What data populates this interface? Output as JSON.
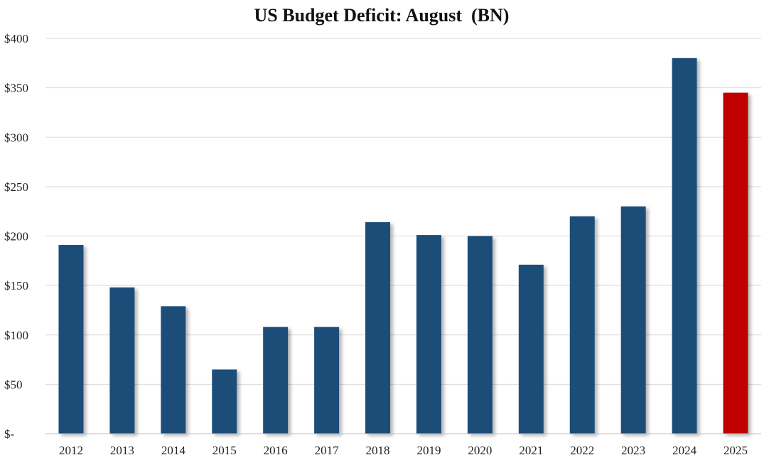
{
  "chart_data": {
    "type": "bar",
    "title": "US Budget Deficit: August  (BN)",
    "xlabel": "",
    "ylabel": "",
    "categories": [
      "2012",
      "2013",
      "2014",
      "2015",
      "2016",
      "2017",
      "2018",
      "2019",
      "2020",
      "2021",
      "2022",
      "2023",
      "2024",
      "2025"
    ],
    "values": [
      191,
      148,
      129,
      65,
      108,
      108,
      214,
      201,
      200,
      171,
      220,
      230,
      380,
      345
    ],
    "ylim": [
      0,
      400
    ],
    "yticks": [
      0,
      50,
      100,
      150,
      200,
      250,
      300,
      350,
      400
    ],
    "ytick_labels": [
      "$-",
      "$50",
      "$100",
      "$150",
      "$200",
      "$250",
      "$300",
      "$350",
      "$400"
    ],
    "grid": true,
    "legend": "none",
    "colors": {
      "default_bar": "#1f4e79",
      "highlight_bar": "#c00000",
      "gridline": "#d9d9d9"
    },
    "highlight_index": 13
  }
}
